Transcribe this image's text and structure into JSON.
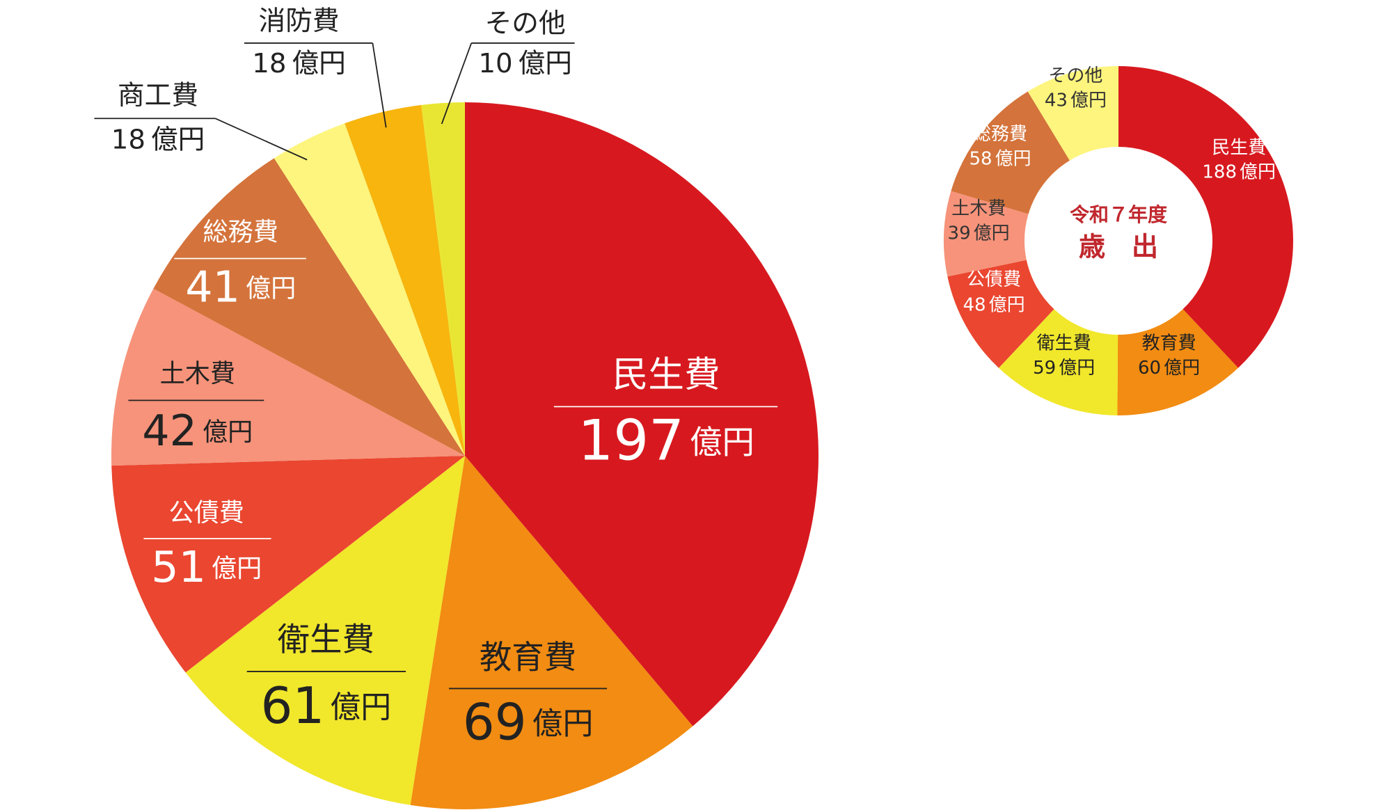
{
  "chart_data": [
    {
      "type": "pie",
      "categories": [
        "民生費",
        "教育費",
        "衛生費",
        "公債費",
        "土木費",
        "総務費",
        "商工費",
        "消防費",
        "その他"
      ],
      "values": [
        197,
        69,
        61,
        51,
        42,
        41,
        18,
        18,
        10
      ],
      "unit": "億円",
      "colors": [
        "#d7191f",
        "#f28c12",
        "#f1e72b",
        "#ea4630",
        "#f6937a",
        "#d4733b",
        "#fdf57d",
        "#f7b50e",
        "#e9e633"
      ]
    },
    {
      "type": "donut",
      "title": "令和７年度",
      "subtitle": "歳　出",
      "categories": [
        "民生費",
        "教育費",
        "衛生費",
        "公債費",
        "土木費",
        "総務費",
        "その他"
      ],
      "values": [
        188,
        60,
        59,
        48,
        39,
        58,
        43
      ],
      "unit": "億円",
      "colors": [
        "#d7191f",
        "#f28c12",
        "#f1e72b",
        "#ea4630",
        "#f6937a",
        "#d4733b",
        "#fdf57d"
      ]
    }
  ]
}
